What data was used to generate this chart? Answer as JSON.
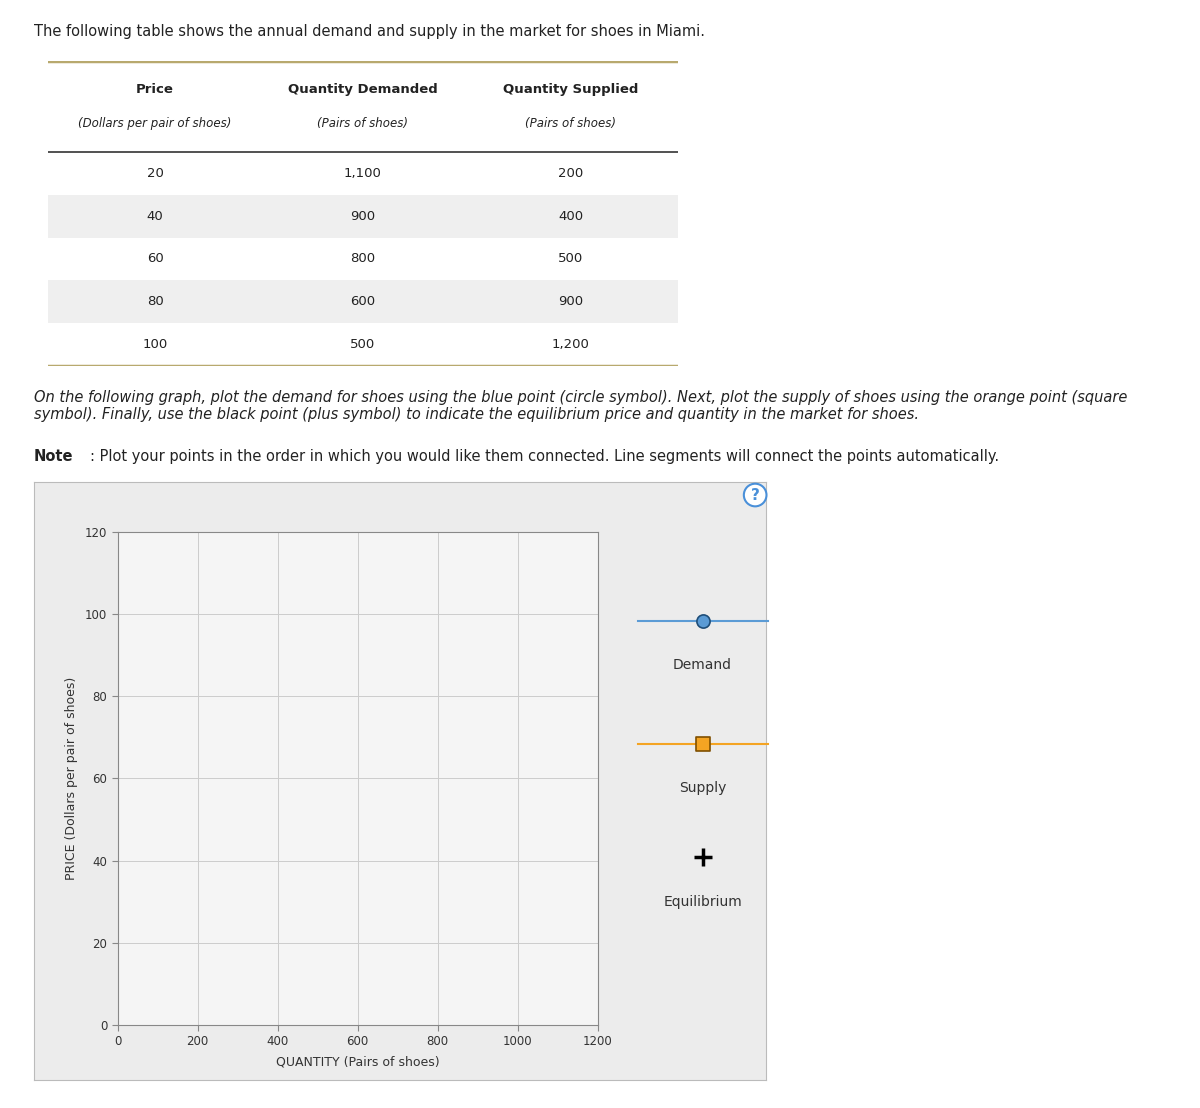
{
  "intro_text": "The following table shows the annual demand and supply in the market for shoes in Miami.",
  "table_col_headers_bold": [
    "Price",
    "Quantity Demanded",
    "Quantity Supplied"
  ],
  "table_col_headers_italic": [
    "(Dollars per pair of shoes)",
    "(Pairs of shoes)",
    "(Pairs of shoes)"
  ],
  "table_rows": [
    [
      "20",
      "1,100",
      "200"
    ],
    [
      "40",
      "900",
      "400"
    ],
    [
      "60",
      "800",
      "500"
    ],
    [
      "80",
      "600",
      "900"
    ],
    [
      "100",
      "500",
      "1,200"
    ]
  ],
  "instruction_text": "On the following graph, plot the demand for shoes using the blue point (circle symbol). Next, plot the supply of shoes using the orange point (square\nsymbol). Finally, use the black point (plus symbol) to indicate the equilibrium price and quantity in the market for shoes.",
  "note_bold": "Note",
  "note_rest": ": Plot your points in the order in which you would like them connected. Line segments will connect the points automatically.",
  "demand_color": "#5b9bd5",
  "demand_edge_color": "#1f4e79",
  "supply_color": "#f4a423",
  "supply_edge_color": "#7f4f00",
  "equilibrium_color": "#000000",
  "xlabel": "QUANTITY (Pairs of shoes)",
  "ylabel": "PRICE (Dollars per pair of shoes)",
  "xlim": [
    0,
    1200
  ],
  "ylim": [
    0,
    120
  ],
  "xticks": [
    0,
    200,
    400,
    600,
    800,
    1000,
    1200
  ],
  "yticks": [
    0,
    20,
    40,
    60,
    80,
    100,
    120
  ],
  "grid_color": "#cccccc",
  "plot_bg_color": "#f5f5f5",
  "panel_bg_color": "#ececec",
  "outer_bg_color": "#ffffff",
  "table_stripe_color": "#efefef",
  "table_border_top_color": "#b8a96e",
  "table_border_bottom_color": "#b8a96e",
  "table_header_line_color": "#333333",
  "legend_demand_label": "Demand",
  "legend_supply_label": "Supply",
  "legend_equil_label": "Equilibrium"
}
